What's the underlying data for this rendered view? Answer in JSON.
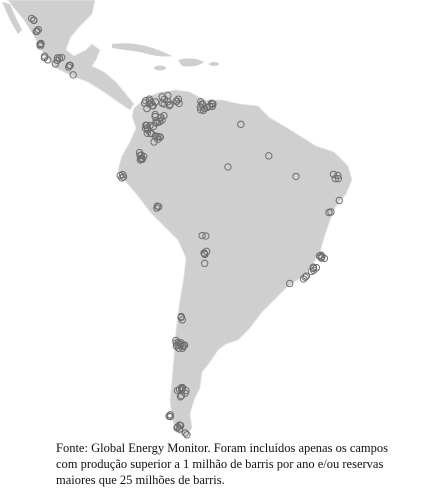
{
  "caption": {
    "lines": [
      "Fonte: Global Energy Monitor. Foram incluídos apenas os campos",
      "com produção superior a 1 milhão de barris por ano e/ou reservas",
      "maiores que 25 milhões de barris."
    ]
  }
}
